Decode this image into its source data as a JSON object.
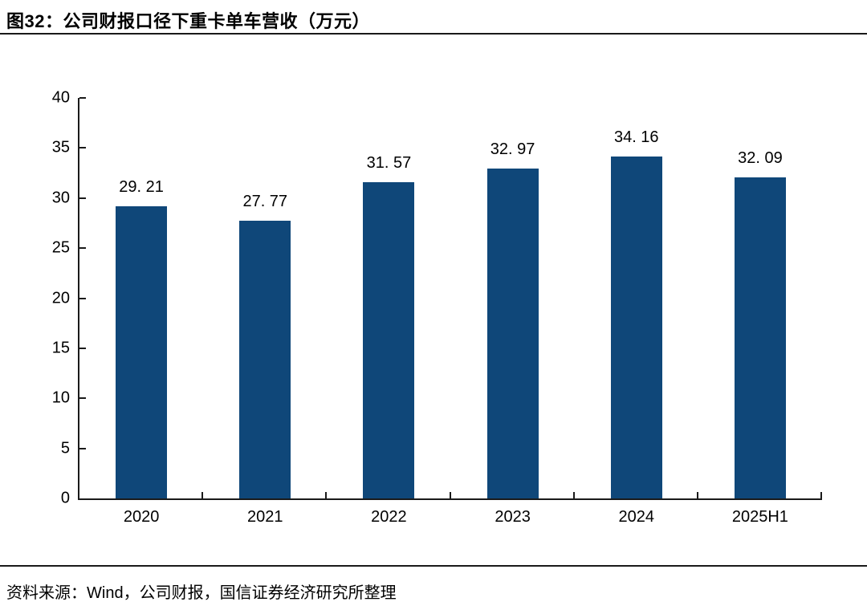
{
  "figure": {
    "label": "图32：",
    "title": "图32：公司财报口径下重卡单车营收（万元）",
    "source": "资料来源：Wind，公司财报，国信证券经济研究所整理"
  },
  "chart_data": {
    "type": "bar",
    "title": "公司财报口径下重卡单车营收（万元）",
    "categories": [
      "2020",
      "2021",
      "2022",
      "2023",
      "2024",
      "2025H1"
    ],
    "values": [
      29.21,
      27.77,
      31.57,
      32.97,
      34.16,
      32.09
    ],
    "value_labels": [
      "29. 21",
      "27. 77",
      "31. 57",
      "32. 97",
      "34. 16",
      "32. 09"
    ],
    "xlabel": "",
    "ylabel": "",
    "ylim": [
      0,
      40
    ],
    "yticks": [
      0,
      5,
      10,
      15,
      20,
      25,
      30,
      35,
      40
    ],
    "grid": false,
    "legend": false,
    "bar_color": "#0F4779",
    "axis_color": "#1a1a1a"
  }
}
